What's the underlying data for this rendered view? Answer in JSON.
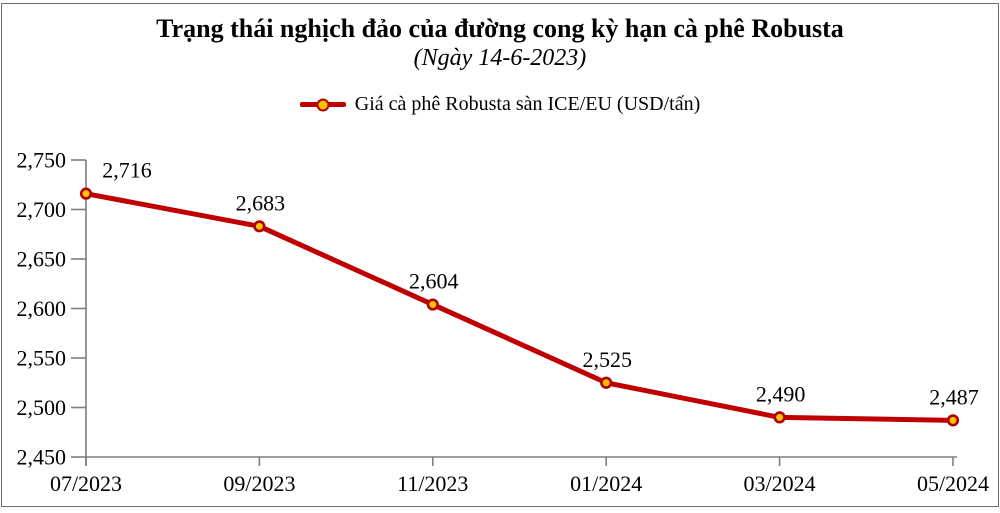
{
  "colors": {
    "line": "#C00000",
    "marker_fill": "#FFC000",
    "marker_border": "#B00000",
    "axis": "#7f7f7f",
    "text": "#000000",
    "frame_border": "#6e6e6e"
  },
  "chart_data": {
    "type": "line",
    "title": "Trạng thái nghịch đảo của đường cong kỳ hạn cà phê Robusta",
    "subtitle": "(Ngày 14-6-2023)",
    "categories": [
      "07/2023",
      "09/2023",
      "11/2023",
      "01/2024",
      "03/2024",
      "05/2024"
    ],
    "series": [
      {
        "name": "Giá cà phê Robusta sàn ICE/EU (USD/tấn)",
        "values": [
          2716,
          2683,
          2604,
          2525,
          2490,
          2487
        ]
      }
    ],
    "data_labels": [
      "2,716",
      "2,683",
      "2,604",
      "2,525",
      "2,490",
      "2,487"
    ],
    "yticks": [
      2450,
      2500,
      2550,
      2600,
      2650,
      2700,
      2750
    ],
    "ytick_labels": [
      "2,450",
      "2,500",
      "2,550",
      "2,600",
      "2,650",
      "2,700",
      "2,750"
    ],
    "ylim": [
      2450,
      2750
    ],
    "grid": false,
    "legend_position": "top",
    "xlabel": "",
    "ylabel": ""
  }
}
